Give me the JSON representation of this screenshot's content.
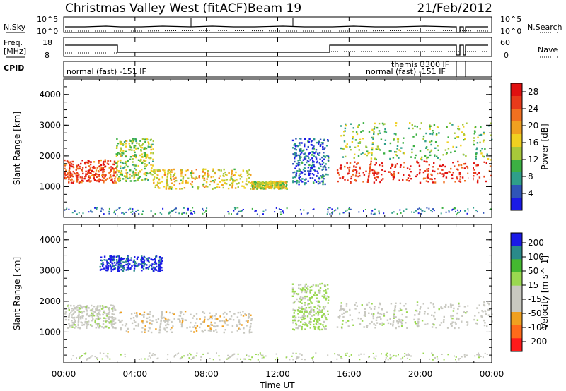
{
  "header": {
    "title": "Christmas Valley West (fitACF)",
    "beam": "Beam 19",
    "date": "21/Feb/2012"
  },
  "top_panels": {
    "nsky_label": "N.Sky",
    "nsearch_label": "N.Search",
    "noise_ticks_left": [
      "10^5",
      "10^0"
    ],
    "noise_ticks_right": [
      "10^5",
      "10^0"
    ],
    "freq_label_1": "Freq.",
    "freq_label_2": "[MHz]",
    "freq_ticks": [
      "18",
      "8"
    ],
    "nave_label": "Nave",
    "nave_ticks": [
      "60",
      "0"
    ],
    "cpid_label": "CPID",
    "cpid_segments": [
      "normal (fast) -151 IF",
      "themis 3300 IF",
      "normal (fast) -151 IF"
    ]
  },
  "x_axis": {
    "label": "Time UT",
    "ticks": [
      "00:00",
      "04:00",
      "08:00",
      "12:00",
      "16:00",
      "20:00",
      "00:00"
    ]
  },
  "colors": {
    "power": [
      "#1a1ae6",
      "#2f55b8",
      "#2f9f8a",
      "#3cb043",
      "#a8c83a",
      "#f0d020",
      "#f0a020",
      "#f07020",
      "#e83a1a",
      "#e01010"
    ],
    "velocity": [
      "#ff1a1a",
      "#ff6a1a",
      "#f0a020",
      "#c8c8c0",
      "#c8c8c0",
      "#9ad850",
      "#44b830",
      "#2a8a8a",
      "#1a1ae6"
    ]
  },
  "chart_data": [
    {
      "type": "heatmap",
      "title": "Power",
      "xlabel": "Time UT",
      "ylabel": "Slant Range [km]",
      "xlim": [
        0,
        24
      ],
      "ylim": [
        0,
        4500
      ],
      "yticks": [
        "1000",
        "2000",
        "3000",
        "4000"
      ],
      "colorbar": {
        "label": "Power [dB]",
        "ticks": [
          "4",
          "8",
          "12",
          "16",
          "20",
          "24",
          "28"
        ],
        "range": [
          0,
          30
        ]
      },
      "features": [
        {
          "t0": 0.0,
          "t1": 2.9,
          "r0": 1150,
          "r1": 1900,
          "level": 0.85
        },
        {
          "t0": 2.9,
          "t1": 5.0,
          "r0": 1200,
          "r1": 2600,
          "level": 0.45
        },
        {
          "t0": 5.0,
          "t1": 10.5,
          "r0": 950,
          "r1": 1600,
          "level": 0.55
        },
        {
          "t0": 10.5,
          "t1": 12.5,
          "r0": 950,
          "r1": 1200,
          "level": 0.5
        },
        {
          "t0": 12.8,
          "t1": 14.8,
          "r0": 1100,
          "r1": 2600,
          "level": 0.15
        },
        {
          "t0": 15.3,
          "t1": 24.0,
          "r0": 1150,
          "r1": 1850,
          "level": 0.9
        },
        {
          "t0": 15.3,
          "t1": 24.0,
          "r0": 1900,
          "r1": 3100,
          "level": 0.4
        }
      ]
    },
    {
      "type": "heatmap",
      "title": "Velocity",
      "xlabel": "Time UT",
      "ylabel": "Slant Range [km]",
      "xlim": [
        0,
        24
      ],
      "ylim": [
        0,
        4500
      ],
      "yticks": [
        "1000",
        "2000",
        "3000",
        "4000"
      ],
      "colorbar": {
        "label": "Velocity [m s^-1]",
        "ticks": [
          "200",
          "100",
          "50",
          "15",
          "-15",
          "-50",
          "-100",
          "-200"
        ],
        "range": [
          -250,
          250
        ]
      },
      "features": [
        {
          "t0": 0.0,
          "t1": 2.9,
          "r0": 1150,
          "r1": 1900,
          "velocity": 0
        },
        {
          "t0": 2.0,
          "t1": 5.5,
          "r0": 3000,
          "r1": 3500,
          "velocity": 210
        },
        {
          "t0": 3.0,
          "t1": 10.5,
          "r0": 1000,
          "r1": 1700,
          "velocity": -60
        },
        {
          "t0": 12.8,
          "t1": 14.8,
          "r0": 1100,
          "r1": 2600,
          "velocity": 40
        },
        {
          "t0": 15.3,
          "t1": 24.0,
          "r0": 1150,
          "r1": 2000,
          "velocity": 0
        }
      ]
    }
  ]
}
